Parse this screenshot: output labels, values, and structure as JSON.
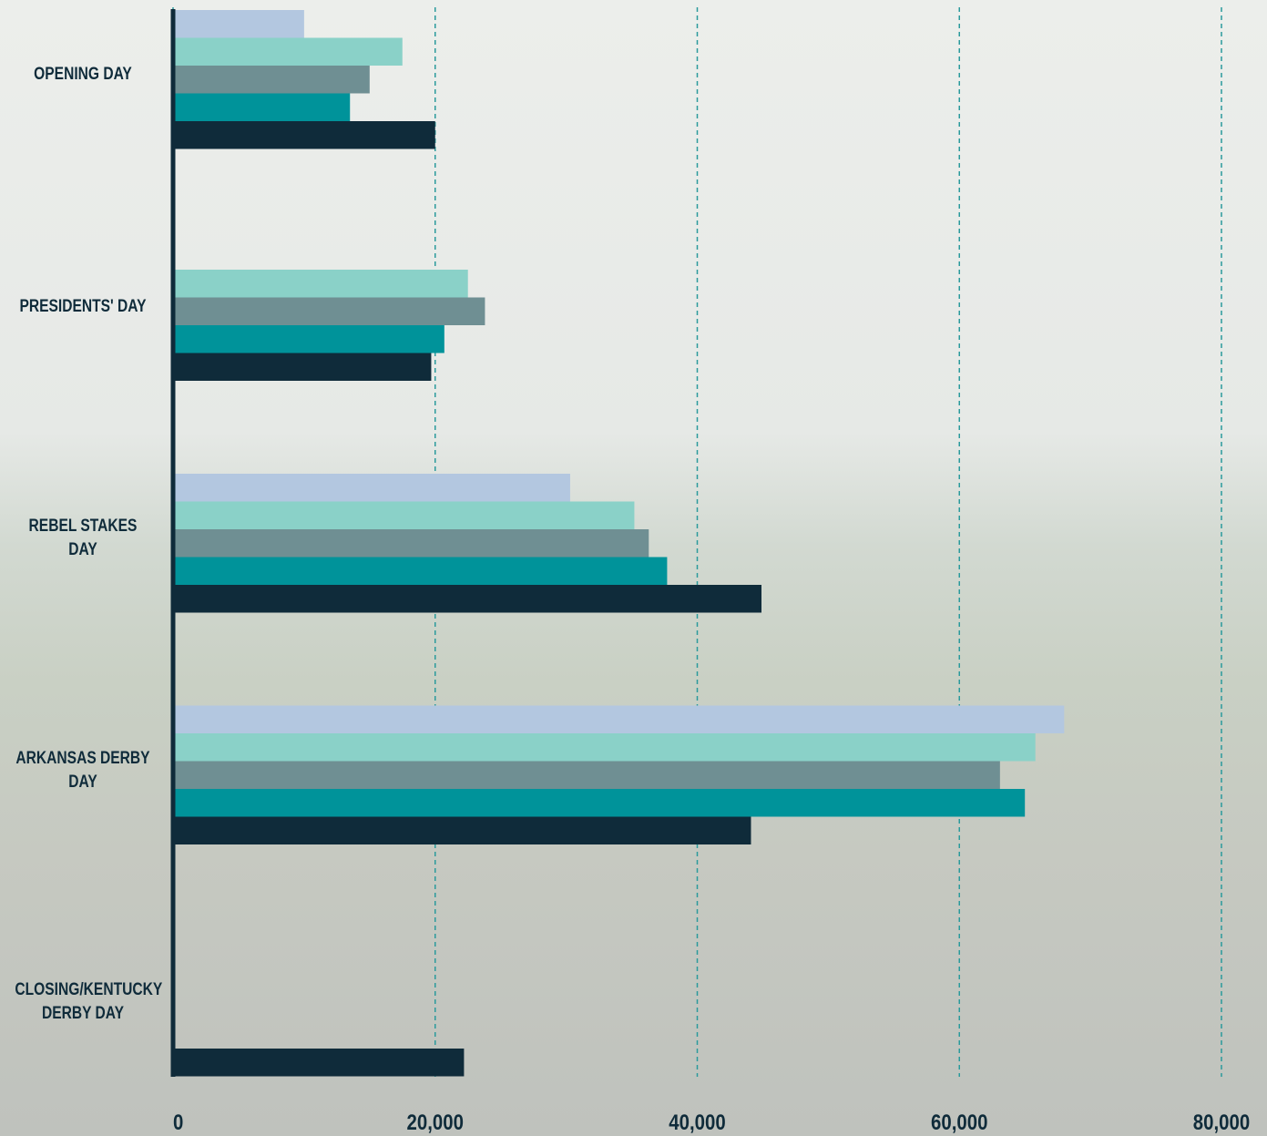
{
  "chart_data": {
    "type": "bar",
    "orientation": "horizontal",
    "categories": [
      "OPENING DAY",
      "PRESIDENTS' DAY",
      "REBEL STAKES DAY",
      "ARKANSAS DERBY DAY",
      "CLOSING/KENTUCKY DERBY DAY"
    ],
    "series": [
      {
        "color": "#b3c7e0",
        "values": [
          10000,
          null,
          30300,
          68000,
          null
        ]
      },
      {
        "color": "#8ad1c8",
        "values": [
          17500,
          22500,
          35200,
          65800,
          null
        ]
      },
      {
        "color": "#6f8f93",
        "values": [
          15000,
          23800,
          36300,
          63100,
          null
        ]
      },
      {
        "color": "#00939a",
        "values": [
          13500,
          20700,
          37700,
          65000,
          null
        ]
      },
      {
        "color": "#0f2b3a",
        "values": [
          20000,
          19700,
          44900,
          44100,
          22200
        ]
      }
    ],
    "xlim": [
      0,
      80000
    ],
    "xticks": [
      0,
      {
        "value": 20000,
        "label": "20,000"
      },
      {
        "value": 40000,
        "label": "40,000"
      },
      {
        "value": 60000,
        "label": "60,000"
      },
      {
        "value": 80000,
        "label": "80,000"
      }
    ],
    "grid": true
  }
}
